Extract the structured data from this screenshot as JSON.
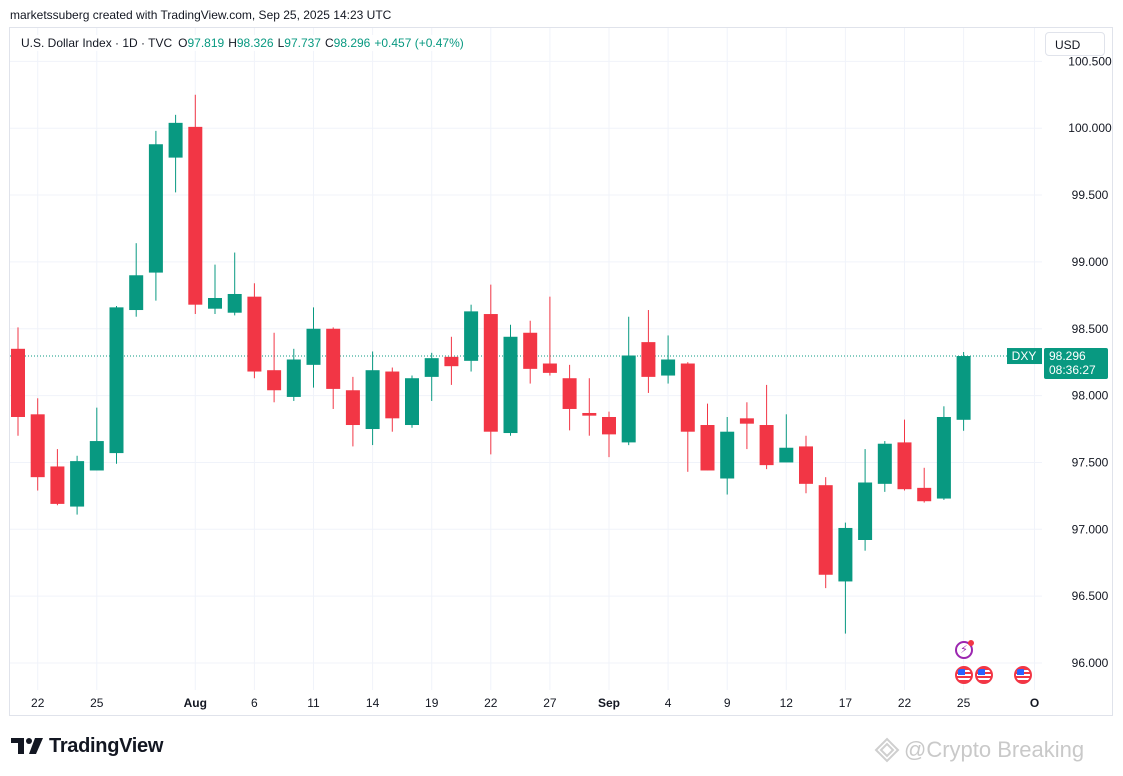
{
  "caption": "marketssuberg created with TradingView.com, Sep 25, 2025 14:23 UTC",
  "legend": {
    "symbol": "U.S. Dollar Index · 1D · TVC",
    "open_label": "O",
    "open": "97.819",
    "high_label": "H",
    "high": "98.326",
    "low_label": "L",
    "low": "97.737",
    "close_label": "C",
    "close": "98.296",
    "change": "+0.457 (+0.47%)"
  },
  "currency": "USD",
  "price_tag": {
    "ticker": "DXY",
    "price": "98.296",
    "countdown": "08:36:27"
  },
  "footer": {
    "logo_text": "TradingView",
    "watermark": "@Crypto Breaking"
  },
  "colors": {
    "up": "#089981",
    "down": "#f23645",
    "grid": "#f0f3fa",
    "text": "#131722",
    "bolt": "#9c27b0"
  },
  "icons": {
    "events_flag": "us-flag-icon",
    "events_bolt": "lightning-icon",
    "logo": "tradingview-logo-icon"
  },
  "chart_data": {
    "type": "candlestick",
    "title": "U.S. Dollar Index · 1D · TVC",
    "ylim": [
      95.85,
      100.52
    ],
    "y_ticks": [
      "100.500",
      "100.000",
      "99.500",
      "99.000",
      "98.500",
      "98.000",
      "97.500",
      "97.000",
      "96.500",
      "96.000"
    ],
    "x_ticks": [
      {
        "index": 1,
        "label": "22",
        "bold": false
      },
      {
        "index": 4,
        "label": "25",
        "bold": false
      },
      {
        "index": 9,
        "label": "Aug",
        "bold": true
      },
      {
        "index": 12,
        "label": "6",
        "bold": false
      },
      {
        "index": 15,
        "label": "11",
        "bold": false
      },
      {
        "index": 18,
        "label": "14",
        "bold": false
      },
      {
        "index": 21,
        "label": "19",
        "bold": false
      },
      {
        "index": 24,
        "label": "22",
        "bold": false
      },
      {
        "index": 27,
        "label": "27",
        "bold": false
      },
      {
        "index": 30,
        "label": "Sep",
        "bold": true
      },
      {
        "index": 33,
        "label": "4",
        "bold": false
      },
      {
        "index": 36,
        "label": "9",
        "bold": false
      },
      {
        "index": 39,
        "label": "12",
        "bold": false
      },
      {
        "index": 42,
        "label": "17",
        "bold": false
      },
      {
        "index": 45,
        "label": "22",
        "bold": false
      },
      {
        "index": 48,
        "label": "25",
        "bold": false
      },
      {
        "index": 51.6,
        "label": "O",
        "bold": true
      }
    ],
    "last_price": 98.296,
    "candles": [
      {
        "o": 98.35,
        "h": 98.51,
        "l": 97.7,
        "c": 97.84
      },
      {
        "o": 97.86,
        "h": 97.98,
        "l": 97.29,
        "c": 97.39
      },
      {
        "o": 97.47,
        "h": 97.6,
        "l": 97.18,
        "c": 97.19
      },
      {
        "o": 97.17,
        "h": 97.55,
        "l": 97.11,
        "c": 97.51
      },
      {
        "o": 97.44,
        "h": 97.91,
        "l": 97.44,
        "c": 97.66
      },
      {
        "o": 97.57,
        "h": 98.67,
        "l": 97.49,
        "c": 98.66
      },
      {
        "o": 98.64,
        "h": 99.14,
        "l": 98.59,
        "c": 98.9
      },
      {
        "o": 98.92,
        "h": 99.98,
        "l": 98.71,
        "c": 99.88
      },
      {
        "o": 99.78,
        "h": 100.1,
        "l": 99.52,
        "c": 100.04
      },
      {
        "o": 100.01,
        "h": 100.25,
        "l": 98.61,
        "c": 98.68
      },
      {
        "o": 98.65,
        "h": 98.98,
        "l": 98.61,
        "c": 98.73
      },
      {
        "o": 98.62,
        "h": 99.07,
        "l": 98.6,
        "c": 98.76
      },
      {
        "o": 98.74,
        "h": 98.84,
        "l": 98.13,
        "c": 98.18
      },
      {
        "o": 98.19,
        "h": 98.47,
        "l": 97.95,
        "c": 98.04
      },
      {
        "o": 97.99,
        "h": 98.35,
        "l": 97.96,
        "c": 98.27
      },
      {
        "o": 98.23,
        "h": 98.66,
        "l": 98.06,
        "c": 98.5
      },
      {
        "o": 98.5,
        "h": 98.51,
        "l": 97.9,
        "c": 98.05
      },
      {
        "o": 98.04,
        "h": 98.14,
        "l": 97.62,
        "c": 97.78
      },
      {
        "o": 97.75,
        "h": 98.33,
        "l": 97.63,
        "c": 98.19
      },
      {
        "o": 98.18,
        "h": 98.21,
        "l": 97.73,
        "c": 97.83
      },
      {
        "o": 97.78,
        "h": 98.15,
        "l": 97.76,
        "c": 98.13
      },
      {
        "o": 98.14,
        "h": 98.32,
        "l": 97.96,
        "c": 98.28
      },
      {
        "o": 98.29,
        "h": 98.44,
        "l": 98.08,
        "c": 98.22
      },
      {
        "o": 98.26,
        "h": 98.68,
        "l": 98.18,
        "c": 98.63
      },
      {
        "o": 98.61,
        "h": 98.83,
        "l": 97.56,
        "c": 97.73
      },
      {
        "o": 97.72,
        "h": 98.53,
        "l": 97.7,
        "c": 98.44
      },
      {
        "o": 98.47,
        "h": 98.56,
        "l": 98.09,
        "c": 98.2
      },
      {
        "o": 98.24,
        "h": 98.74,
        "l": 98.15,
        "c": 98.17
      },
      {
        "o": 98.13,
        "h": 98.23,
        "l": 97.74,
        "c": 97.9
      },
      {
        "o": 97.87,
        "h": 98.13,
        "l": 97.7,
        "c": 97.85
      },
      {
        "o": 97.84,
        "h": 97.88,
        "l": 97.54,
        "c": 97.71
      },
      {
        "o": 97.65,
        "h": 98.59,
        "l": 97.63,
        "c": 98.3
      },
      {
        "o": 98.4,
        "h": 98.64,
        "l": 98.02,
        "c": 98.14
      },
      {
        "o": 98.15,
        "h": 98.45,
        "l": 98.09,
        "c": 98.27
      },
      {
        "o": 98.24,
        "h": 98.25,
        "l": 97.43,
        "c": 97.73
      },
      {
        "o": 97.78,
        "h": 97.94,
        "l": 97.44,
        "c": 97.44
      },
      {
        "o": 97.38,
        "h": 97.84,
        "l": 97.26,
        "c": 97.73
      },
      {
        "o": 97.83,
        "h": 97.95,
        "l": 97.6,
        "c": 97.79
      },
      {
        "o": 97.78,
        "h": 98.08,
        "l": 97.45,
        "c": 97.48
      },
      {
        "o": 97.5,
        "h": 97.86,
        "l": 97.5,
        "c": 97.61
      },
      {
        "o": 97.62,
        "h": 97.7,
        "l": 97.27,
        "c": 97.34
      },
      {
        "o": 97.33,
        "h": 97.39,
        "l": 96.56,
        "c": 96.66
      },
      {
        "o": 96.61,
        "h": 97.05,
        "l": 96.22,
        "c": 97.01
      },
      {
        "o": 96.92,
        "h": 97.6,
        "l": 96.84,
        "c": 97.35
      },
      {
        "o": 97.34,
        "h": 97.66,
        "l": 97.28,
        "c": 97.64
      },
      {
        "o": 97.65,
        "h": 97.82,
        "l": 97.29,
        "c": 97.3
      },
      {
        "o": 97.31,
        "h": 97.46,
        "l": 97.2,
        "c": 97.21
      },
      {
        "o": 97.23,
        "h": 97.92,
        "l": 97.22,
        "c": 97.84
      },
      {
        "o": 97.819,
        "h": 98.326,
        "l": 97.737,
        "c": 98.296
      }
    ]
  }
}
